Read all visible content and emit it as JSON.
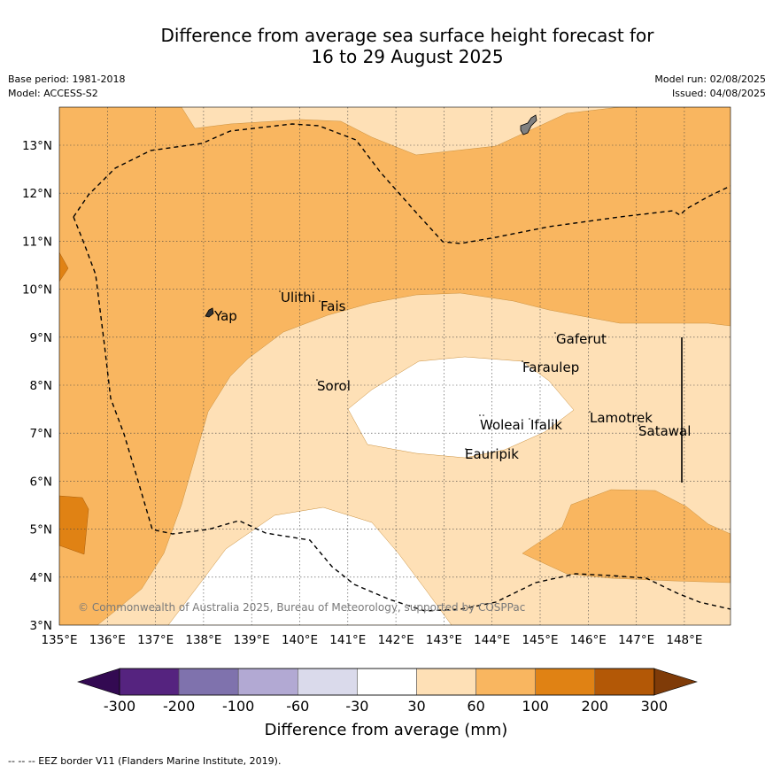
{
  "header": {
    "title_line1": "Difference from average sea surface height forecast for",
    "title_line2": "16 to 29 August 2025",
    "base_period": "Base period: 1981-2018",
    "model": "Model: ACCESS-S2",
    "model_run": "Model run: 02/08/2025",
    "issued": "Issued: 04/08/2025"
  },
  "map": {
    "x_ticks": [
      "135°E",
      "136°E",
      "137°E",
      "138°E",
      "139°E",
      "140°E",
      "141°E",
      "142°E",
      "143°E",
      "144°E",
      "145°E",
      "146°E",
      "147°E",
      "148°E"
    ],
    "y_ticks": [
      "13°N",
      "12°N",
      "11°N",
      "10°N",
      "9°N",
      "8°N",
      "7°N",
      "6°N",
      "5°N",
      "4°N",
      "3°N"
    ],
    "places": [
      "Ulithi",
      "Fais",
      "Yap",
      "Gaferut",
      "Faraulep",
      "Sorol",
      "Lamotrek",
      "Woleai",
      "Ifalik",
      "Satawal",
      "Eauripik"
    ],
    "credit": "© Commonwealth of Australia 2025, Bureau of Meteorology, supported by COSPPac"
  },
  "colorbar": {
    "ticks": [
      "-300",
      "-200",
      "-100",
      "-60",
      "-30",
      "30",
      "60",
      "100",
      "200",
      "300"
    ],
    "colors": [
      "#330a52",
      "#55237f",
      "#7f72ad",
      "#b2a9d3",
      "#dadaeb",
      "#ffffff",
      "#fee0b6",
      "#f9b660",
      "#e08214",
      "#b35806",
      "#7f3b08"
    ],
    "label": "Difference from average (mm)"
  },
  "footer": {
    "legend": "--  --  -- EEZ border V11 (Flanders Marine Institute, 2019)."
  }
}
